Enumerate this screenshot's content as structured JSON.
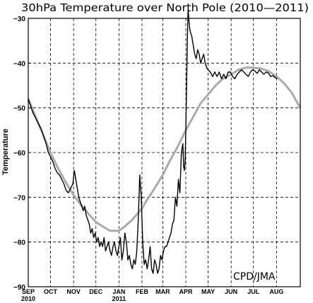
{
  "chart_data": {
    "type": "line",
    "title": "30hPa Temperature over North Pole (2010—2011)",
    "xlabel": "",
    "ylabel": "Temperature",
    "ylim": [
      -90,
      -30
    ],
    "yticks": [
      -30,
      -40,
      -50,
      -60,
      -70,
      -80,
      -90
    ],
    "ytick_labels": [
      "−30",
      "−40",
      "−50",
      "−60",
      "−70",
      "−80",
      "−90"
    ],
    "xlim_days": [
      0,
      366
    ],
    "month_ticks": [
      {
        "day": 0,
        "label": "SEP",
        "sub": "2010"
      },
      {
        "day": 30,
        "label": "OCT",
        "sub": ""
      },
      {
        "day": 61,
        "label": "NOV",
        "sub": ""
      },
      {
        "day": 91,
        "label": "DEC",
        "sub": ""
      },
      {
        "day": 122,
        "label": "JAN",
        "sub": "2011"
      },
      {
        "day": 153,
        "label": "FEB",
        "sub": ""
      },
      {
        "day": 181,
        "label": "MAR",
        "sub": ""
      },
      {
        "day": 212,
        "label": "APR",
        "sub": ""
      },
      {
        "day": 242,
        "label": "MAY",
        "sub": ""
      },
      {
        "day": 273,
        "label": "JUN",
        "sub": ""
      },
      {
        "day": 303,
        "label": "JUL",
        "sub": ""
      },
      {
        "day": 334,
        "label": "AUG",
        "sub": ""
      }
    ],
    "annotation": "CPD/JMA",
    "grid": true,
    "series": [
      {
        "color": "#aaaaaa",
        "x": [
          0,
          10,
          20,
          30,
          40,
          50,
          61,
          70,
          80,
          91,
          100,
          110,
          122,
          130,
          140,
          153,
          160,
          170,
          181,
          190,
          200,
          212,
          222,
          232,
          242,
          252,
          262,
          273,
          283,
          293,
          303,
          313,
          323,
          334,
          344,
          354,
          366
        ],
        "y": [
          -48,
          -52,
          -56,
          -60,
          -63.5,
          -66.5,
          -69.5,
          -71.5,
          -73.5,
          -75.5,
          -76.5,
          -77.5,
          -77.5,
          -76.5,
          -75,
          -72.5,
          -70.5,
          -68,
          -65,
          -62,
          -59,
          -55,
          -52,
          -49,
          -47,
          -45,
          -43.5,
          -42.5,
          -41.5,
          -41,
          -41,
          -41.2,
          -41.8,
          -43,
          -44.5,
          -46.5,
          -50
        ]
      },
      {
        "color": "#000000",
        "x": [
          0,
          3,
          6,
          9,
          12,
          15,
          18,
          21,
          24,
          27,
          30,
          33,
          36,
          39,
          42,
          45,
          48,
          51,
          54,
          57,
          60,
          62,
          64,
          66,
          68,
          70,
          72,
          74,
          76,
          78,
          80,
          82,
          84,
          86,
          88,
          90,
          92,
          94,
          96,
          98,
          100,
          102,
          104,
          106,
          108,
          110,
          112,
          114,
          116,
          118,
          120,
          122,
          124,
          126,
          128,
          130,
          132,
          134,
          136,
          138,
          140,
          142,
          144,
          146,
          148,
          150,
          152,
          154,
          156,
          158,
          160,
          162,
          164,
          166,
          168,
          170,
          172,
          174,
          176,
          178,
          180,
          182,
          184,
          186,
          188,
          190,
          192,
          194,
          196,
          198,
          200,
          202,
          204,
          206,
          208,
          209,
          210,
          211,
          212,
          213,
          214,
          215,
          216,
          217,
          218,
          220,
          222,
          224,
          226,
          228,
          230,
          232,
          234,
          236,
          238,
          240,
          242,
          245,
          248,
          251,
          254,
          257,
          260,
          263,
          266,
          269,
          272,
          275,
          278,
          281,
          284,
          287,
          290,
          293,
          296,
          299,
          302,
          305,
          308,
          311,
          314,
          317,
          320,
          323,
          326,
          329,
          332,
          335
        ],
        "y": [
          -48,
          -49.5,
          -51,
          -52,
          -53,
          -54,
          -55,
          -56.5,
          -58,
          -60,
          -61,
          -62,
          -63.5,
          -64.5,
          -65,
          -66,
          -67,
          -68.5,
          -69,
          -68,
          -67,
          -64,
          -66,
          -68,
          -70,
          -71,
          -72,
          -73,
          -72,
          -74,
          -75,
          -76,
          -78,
          -77,
          -79,
          -78,
          -80,
          -79,
          -81,
          -80,
          -81,
          -79,
          -82,
          -81,
          -80,
          -82,
          -83,
          -81,
          -80,
          -82,
          -83,
          -81,
          -79,
          -84,
          -82,
          -78,
          -80,
          -84,
          -83,
          -85,
          -86,
          -84,
          -85,
          -82,
          -75,
          -65,
          -70,
          -80,
          -85,
          -84,
          -86,
          -84,
          -81,
          -86,
          -87,
          -84,
          -85,
          -87,
          -86,
          -83,
          -84,
          -82,
          -81,
          -81,
          -80,
          -79,
          -78,
          -76,
          -75,
          -70,
          -72,
          -66,
          -69,
          -60,
          -58,
          -63,
          -64,
          -62,
          -55,
          -45,
          -35,
          -28,
          -30,
          -32,
          -33,
          -34,
          -36,
          -38,
          -39,
          -37,
          -38,
          -40,
          -39,
          -38,
          -40,
          -41,
          -41.5,
          -42,
          -43,
          -42,
          -43,
          -42,
          -43.5,
          -42.5,
          -43.5,
          -42,
          -42,
          -43,
          -43.5,
          -42.5,
          -42,
          -41.5,
          -42,
          -42.5,
          -43,
          -42,
          -41.5,
          -41.8,
          -42.3,
          -41.5,
          -42,
          -42.5,
          -42,
          -42.2,
          -43,
          -42.8,
          -43.2,
          -43.5
        ]
      }
    ]
  }
}
